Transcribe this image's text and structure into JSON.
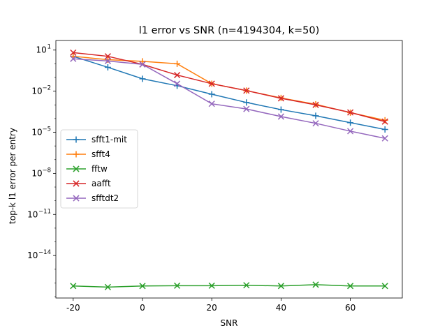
{
  "chart_data": {
    "type": "line",
    "title": "l1 error vs SNR (n=4194304, k=50)",
    "xlabel": "SNR",
    "ylabel": "top-k l1 error per entry",
    "xlim": [
      -25,
      75
    ],
    "ylim_exponent": [
      -17.1,
      1.7
    ],
    "yscale": "log",
    "grid": false,
    "legend_position": "center-left",
    "x_ticks": [
      -20,
      0,
      20,
      40,
      60
    ],
    "x_tick_labels": [
      "-20",
      "0",
      "20",
      "40",
      "60"
    ],
    "y_ticks_exponent": [
      1,
      -2,
      -5,
      -8,
      -11,
      -14
    ],
    "y_tick_labels": [
      {
        "base": "10",
        "exp": "1"
      },
      {
        "base": "10",
        "exp": "−2"
      },
      {
        "base": "10",
        "exp": "−5"
      },
      {
        "base": "10",
        "exp": "−8"
      },
      {
        "base": "10",
        "exp": "−11"
      },
      {
        "base": "10",
        "exp": "−14"
      }
    ],
    "x": [
      -20,
      -10,
      0,
      10,
      20,
      30,
      40,
      50,
      60,
      70
    ],
    "series": [
      {
        "name": "sfft1-mit",
        "color": "#1f77b4",
        "marker": "plus",
        "values": [
          3.5,
          0.55,
          0.08,
          0.025,
          0.006,
          0.0015,
          0.00045,
          0.00016,
          5e-05,
          1.6e-05
        ]
      },
      {
        "name": "sfft4",
        "color": "#ff7f0e",
        "marker": "plus",
        "values": [
          3.5,
          2.0,
          1.5,
          1.0,
          0.035,
          0.011,
          0.0032,
          0.0011,
          0.00027,
          7.5e-05
        ]
      },
      {
        "name": "fftw",
        "color": "#2ca02c",
        "marker": "x",
        "values": [
          6e-17,
          5e-17,
          6e-17,
          6.3e-17,
          6.3e-17,
          6.8e-17,
          6e-17,
          7.5e-17,
          6e-17,
          6e-17
        ]
      },
      {
        "name": "aafft",
        "color": "#d62728",
        "marker": "x",
        "values": [
          6.5,
          3.5,
          0.9,
          0.15,
          0.035,
          0.011,
          0.003,
          0.001,
          0.00028,
          6e-05
        ]
      },
      {
        "name": "sfftdt2",
        "color": "#9467bd",
        "marker": "x",
        "values": [
          2.3,
          1.6,
          0.9,
          0.035,
          0.0012,
          0.0005,
          0.00014,
          4.5e-05,
          1.2e-05,
          3.6e-06
        ]
      }
    ]
  }
}
